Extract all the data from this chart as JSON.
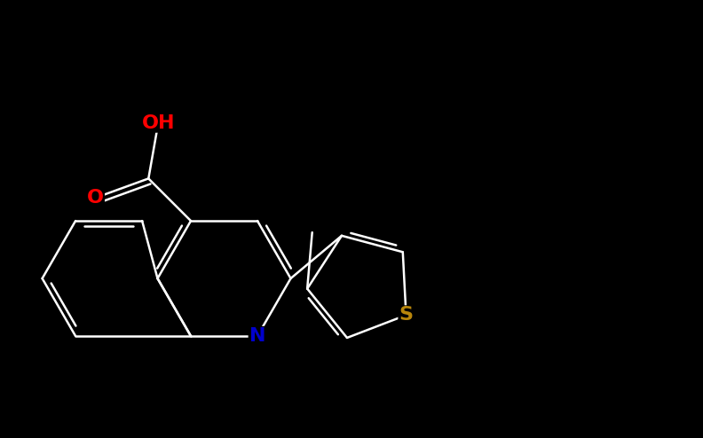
{
  "background_color": "#000000",
  "bond_color": "#ffffff",
  "bond_lw": 1.8,
  "atom_colors": {
    "O": "#ff0000",
    "N": "#0000cc",
    "S": "#b8860b"
  },
  "label_fontsize": 16,
  "label_fontweight": "bold",
  "fig_width": 7.92,
  "fig_height": 4.94,
  "dpi": 100
}
